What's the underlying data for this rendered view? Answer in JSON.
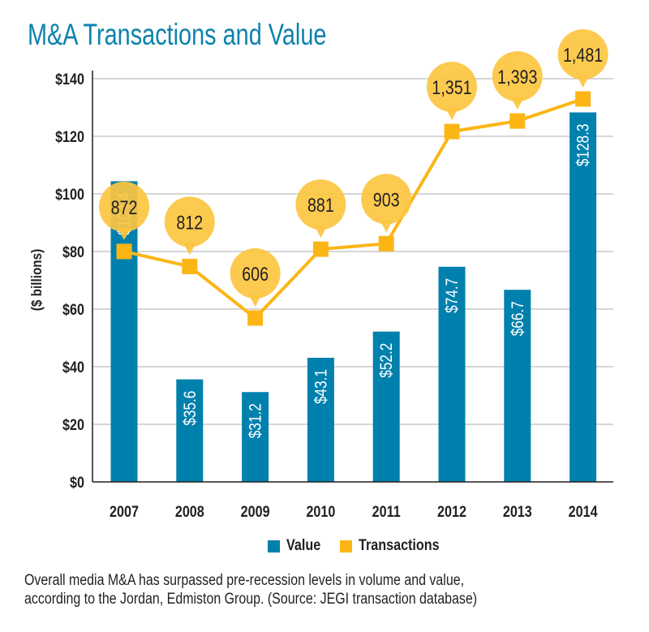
{
  "title": "M&A Transactions and Value",
  "caption": {
    "line1": "Overall media M&A has surpassed pre-recession levels in volume and value,",
    "line2": "according to the Jordan, Edmiston Group. (Source: JEGI transaction database)"
  },
  "legend": {
    "value_label": "Value",
    "transactions_label": "Transactions"
  },
  "colors": {
    "title": "#0c82ad",
    "bar": "#0080ad",
    "line": "#fbb616",
    "bubble": "#fcc640",
    "grid": "#c8c8c8",
    "text": "#231f20"
  },
  "chart_data": {
    "type": "bar",
    "title": "M&A Transactions and Value",
    "xlabel": "",
    "ylabel": "($ billions)",
    "ylim": [
      0,
      140
    ],
    "yticks": [
      0,
      20,
      40,
      60,
      80,
      100,
      120,
      140
    ],
    "ytick_labels": [
      "$0",
      "$20",
      "$40",
      "$60",
      "$80",
      "$100",
      "$120",
      "$140"
    ],
    "grid": true,
    "legend_position": "bottom",
    "categories": [
      "2007",
      "2008",
      "2009",
      "2010",
      "2011",
      "2012",
      "2013",
      "2014"
    ],
    "series": [
      {
        "name": "Value",
        "type": "bar",
        "values": [
          104.4,
          35.6,
          31.2,
          43.1,
          52.2,
          74.7,
          66.7,
          128.3
        ],
        "labels": [
          "$104.4",
          "$35.6",
          "$31.2",
          "$43.1",
          "$52.2",
          "$74.7",
          "$66.7",
          "$128.3"
        ]
      },
      {
        "name": "Transactions",
        "type": "line",
        "values": [
          872,
          812,
          606,
          881,
          903,
          1351,
          1393,
          1481
        ],
        "labels": [
          "872",
          "812",
          "606",
          "881",
          "903",
          "1,351",
          "1,393",
          "1,481"
        ]
      }
    ]
  }
}
